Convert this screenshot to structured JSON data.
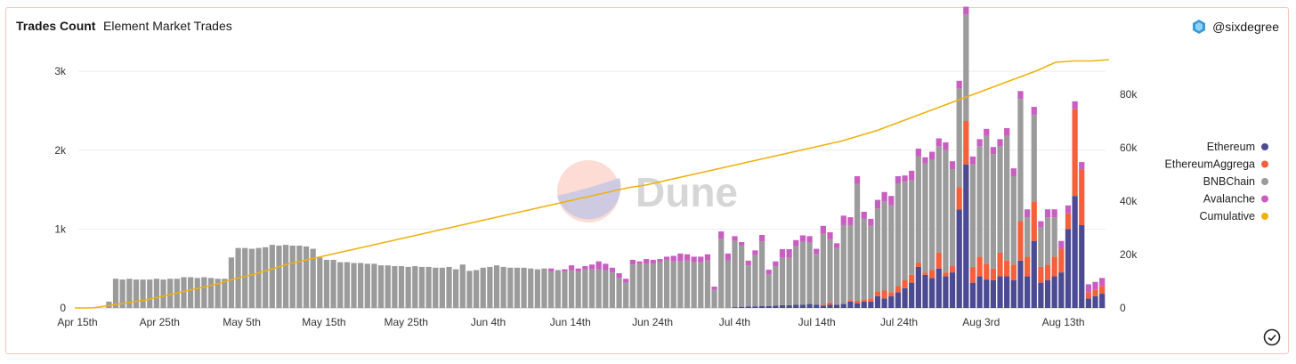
{
  "header": {
    "title": "Trades Count",
    "subtitle": "Element Market Trades",
    "author": "@sixdegree"
  },
  "watermark": "Dune",
  "icons": {
    "author": "dune-user-icon",
    "check": "check-circle-icon"
  },
  "colors": {
    "Ethereum": "#4b4a92",
    "EthereumAggregator": "#f4603c",
    "BNBChain": "#9b9b9b",
    "Avalanche": "#c85fc0",
    "Cumulative": "#efb10f"
  },
  "chart_data": {
    "type": "bar",
    "stacked": true,
    "x_start": "Apr 15th",
    "x_ticks": [
      "Apr 15th",
      "Apr 25th",
      "May 5th",
      "May 15th",
      "May 25th",
      "Jun 4th",
      "Jun 14th",
      "Jun 24th",
      "Jul 4th",
      "Jul 14th",
      "Jul 24th",
      "Aug 3rd",
      "Aug 13th"
    ],
    "y_ticks": [
      "0",
      "1k",
      "2k",
      "3k"
    ],
    "y2_ticks": [
      "0",
      "20k",
      "40k",
      "60k",
      "80k"
    ],
    "ylim": [
      0,
      3250
    ],
    "y2lim": [
      0,
      96000
    ],
    "legend_position": "right",
    "legend": [
      "Ethereum",
      "EthereumAggrega",
      "BNBChain",
      "Avalanche",
      "Cumulative"
    ],
    "series": [
      {
        "name": "Ethereum",
        "values": [
          0,
          0,
          0,
          0,
          0,
          0,
          0,
          0,
          0,
          0,
          0,
          0,
          0,
          0,
          0,
          0,
          0,
          0,
          0,
          0,
          0,
          0,
          0,
          0,
          0,
          0,
          0,
          0,
          0,
          0,
          0,
          0,
          0,
          0,
          0,
          0,
          0,
          0,
          0,
          0,
          0,
          0,
          0,
          0,
          0,
          0,
          0,
          0,
          0,
          0,
          0,
          0,
          0,
          0,
          0,
          0,
          0,
          0,
          0,
          0,
          0,
          0,
          0,
          0,
          0,
          0,
          0,
          0,
          0,
          0,
          0,
          0,
          0,
          0,
          0,
          0,
          0,
          0,
          0,
          0,
          0,
          0,
          0,
          0,
          0,
          0,
          0,
          0,
          0,
          0,
          0,
          0,
          0,
          0,
          0,
          0,
          10,
          15,
          20,
          20,
          25,
          25,
          30,
          35,
          35,
          40,
          40,
          50,
          40,
          30,
          40,
          40,
          50,
          80,
          60,
          80,
          80,
          150,
          120,
          150,
          200,
          250,
          320,
          520,
          420,
          380,
          500,
          400,
          450,
          1250,
          1820,
          320,
          400,
          360,
          350,
          400,
          400,
          350,
          600,
          400,
          850,
          320,
          350,
          400,
          450,
          1000,
          1420,
          1050,
          120,
          150,
          180
        ]
      },
      {
        "name": "EthereumAggregator",
        "values": [
          0,
          0,
          0,
          0,
          0,
          0,
          0,
          0,
          0,
          0,
          0,
          0,
          0,
          0,
          0,
          0,
          0,
          0,
          0,
          0,
          0,
          0,
          0,
          0,
          0,
          0,
          0,
          0,
          0,
          0,
          0,
          0,
          0,
          0,
          0,
          0,
          0,
          0,
          0,
          0,
          0,
          0,
          0,
          0,
          0,
          0,
          0,
          0,
          0,
          0,
          0,
          0,
          0,
          0,
          0,
          0,
          0,
          0,
          0,
          0,
          0,
          0,
          0,
          0,
          0,
          0,
          0,
          0,
          0,
          0,
          0,
          0,
          0,
          0,
          0,
          0,
          0,
          0,
          0,
          0,
          0,
          0,
          0,
          0,
          0,
          0,
          0,
          0,
          0,
          0,
          0,
          0,
          0,
          0,
          0,
          0,
          0,
          0,
          0,
          0,
          0,
          0,
          0,
          0,
          0,
          0,
          0,
          0,
          0,
          10,
          30,
          0,
          0,
          20,
          30,
          30,
          40,
          60,
          100,
          50,
          80,
          100,
          100,
          50,
          30,
          100,
          200,
          50,
          80,
          280,
          550,
          200,
          250,
          200,
          150,
          300,
          200,
          200,
          500,
          250,
          500,
          200,
          200,
          250,
          300,
          200,
          1100,
          700,
          80,
          80,
          100
        ]
      },
      {
        "name": "BNBChain",
        "values": [
          0,
          0,
          0,
          0,
          80,
          370,
          360,
          370,
          360,
          360,
          360,
          370,
          360,
          370,
          370,
          390,
          390,
          380,
          390,
          380,
          370,
          370,
          640,
          760,
          760,
          750,
          760,
          770,
          800,
          790,
          800,
          790,
          790,
          780,
          750,
          640,
          610,
          610,
          580,
          580,
          570,
          570,
          560,
          560,
          540,
          540,
          530,
          530,
          520,
          530,
          520,
          520,
          510,
          510,
          520,
          490,
          550,
          470,
          480,
          510,
          520,
          540,
          520,
          510,
          510,
          510,
          500,
          490,
          500,
          460,
          480,
          460,
          480,
          460,
          490,
          490,
          490,
          480,
          450,
          380,
          320,
          550,
          560,
          560,
          560,
          580,
          610,
          590,
          590,
          600,
          580,
          580,
          600,
          230,
          880,
          600,
          840,
          780,
          520,
          650,
          820,
          400,
          500,
          600,
          600,
          740,
          800,
          780,
          640,
          900,
          800,
          720,
          1000,
          950,
          1480,
          1020,
          920,
          1050,
          1130,
          1100,
          1300,
          1250,
          1200,
          1350,
          1380,
          1400,
          1350,
          1550,
          1230,
          1250,
          1350,
          1300,
          1400,
          1620,
          1450,
          1350,
          1580,
          1120,
          1550,
          500,
          1100,
          500,
          600,
          500
        ]
      },
      {
        "name": "Avalanche",
        "values": [
          0,
          0,
          0,
          0,
          0,
          0,
          0,
          0,
          0,
          0,
          0,
          0,
          0,
          0,
          0,
          0,
          0,
          0,
          0,
          0,
          0,
          0,
          0,
          0,
          0,
          0,
          0,
          0,
          0,
          0,
          0,
          0,
          0,
          0,
          0,
          0,
          0,
          0,
          0,
          0,
          0,
          0,
          0,
          0,
          0,
          0,
          0,
          0,
          0,
          0,
          0,
          0,
          0,
          0,
          0,
          0,
          0,
          0,
          0,
          0,
          0,
          0,
          0,
          0,
          0,
          0,
          0,
          0,
          0,
          40,
          0,
          30,
          60,
          40,
          40,
          60,
          100,
          80,
          60,
          60,
          50,
          60,
          30,
          60,
          50,
          40,
          40,
          70,
          100,
          80,
          70,
          70,
          80,
          40,
          90,
          90,
          60,
          40,
          60,
          60,
          80,
          60,
          60,
          110,
          110,
          80,
          80,
          80,
          70,
          100,
          90,
          60,
          120,
          100,
          100,
          90,
          90,
          110,
          120,
          120,
          90,
          80,
          120,
          100,
          80,
          100,
          100,
          100,
          100,
          100,
          100,
          100,
          90,
          90,
          90,
          90,
          100,
          100,
          100,
          100,
          100,
          80,
          100,
          100,
          100,
          100,
          100,
          100,
          100,
          100,
          100,
          100,
          100,
          100,
          100
        ]
      },
      {
        "name": "Cumulative",
        "values": [
          0,
          0,
          1000,
          2000,
          3000,
          4500,
          6000,
          7500,
          9000,
          11000,
          12500,
          14500,
          16500,
          18000,
          19500,
          21000,
          22500,
          24000,
          25500,
          27000,
          28500,
          30000,
          31500,
          33000,
          34500,
          36000,
          37500,
          39000,
          40500,
          42000,
          43500,
          45000,
          46000,
          47500,
          49000,
          50500,
          52000,
          53500,
          55000,
          56500,
          58000,
          59500,
          61000,
          62500,
          64500,
          66500,
          69000,
          71500,
          74000,
          76500,
          79000,
          81500,
          84000,
          86500,
          89000,
          92000,
          92500,
          92500,
          93000
        ]
      }
    ]
  },
  "check_icon": "check-circle-icon"
}
